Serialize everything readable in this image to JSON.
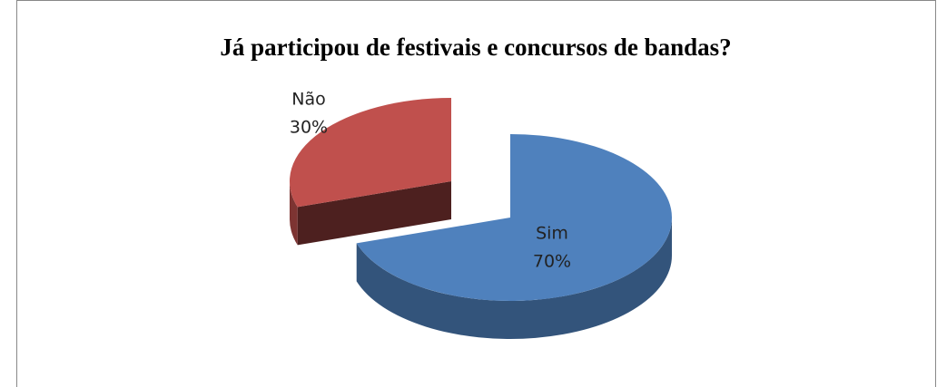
{
  "chart_data": {
    "type": "pie",
    "title": "Já participou de festivais e concursos de bandas?",
    "categories": [
      "Sim",
      "Não"
    ],
    "values": [
      70,
      30
    ],
    "value_labels": [
      "70%",
      "30%"
    ],
    "colors": [
      "#4f81bd",
      "#c0504d"
    ]
  }
}
